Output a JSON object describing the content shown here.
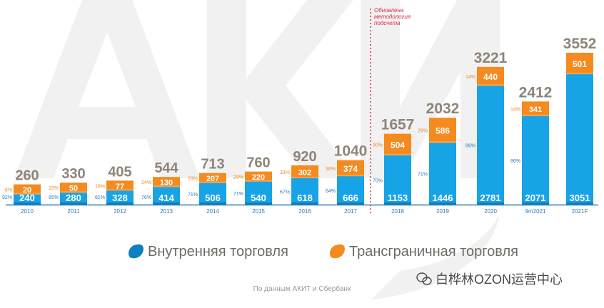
{
  "colors": {
    "domestic": "#17a3e6",
    "domestic_dark": "#0e7fc0",
    "crossborder": "#f58a1f",
    "crossborder_light": "#f7a34b",
    "total_label": "#8f8479",
    "pct_domestic": "#2b7bbf",
    "pct_cross": "#f08a2a",
    "axis": "#2b7bbf",
    "methodology_line": "#d8304a",
    "legend_text": "#6f6a64",
    "source_text": "#9a9a9a",
    "watermark_text": "#4a4a4a",
    "watermark": "#f1f1f1"
  },
  "chart_data": {
    "type": "bar",
    "stacked": true,
    "categories": [
      "2010",
      "2011",
      "2012",
      "2013",
      "2014",
      "2015",
      "2016",
      "2017",
      "2018",
      "2019",
      "2020",
      "9m2021",
      "2021F"
    ],
    "series": [
      {
        "name": "Внутренняя торговля",
        "values": [
          240,
          280,
          328,
          414,
          506,
          540,
          618,
          666,
          1153,
          1446,
          2781,
          2071,
          3051
        ]
      },
      {
        "name": "Трансграничная торговля",
        "values": [
          20,
          50,
          77,
          130,
          207,
          220,
          302,
          374,
          504,
          586,
          440,
          341,
          501
        ]
      }
    ],
    "totals": [
      260,
      330,
      405,
      544,
      713,
      760,
      920,
      1040,
      1657,
      2032,
      3221,
      2412,
      3552
    ],
    "domestic_share_labels": [
      "92%",
      "85%",
      "81%",
      "76%",
      "71%",
      "71%",
      "67%",
      "64%",
      "70%",
      "71%",
      "86%",
      "86%",
      ""
    ],
    "crossborder_share_labels": [
      "8%",
      "15%",
      "19%",
      "24%",
      "29%",
      "29%",
      "33%",
      "36%",
      "30%",
      "29%",
      "14%",
      "14%",
      ""
    ],
    "annotation": {
      "text_lines": [
        "Обновлена",
        "методология",
        "подсчета"
      ],
      "after_category": "2017"
    },
    "legend": {
      "position": "bottom-center",
      "items": [
        "Внутренняя торговля",
        "Трансграничная торговля"
      ]
    },
    "source": "По данным АКИТ и Сбербанк",
    "grid": false,
    "ylim": [
      0,
      3900
    ]
  },
  "watermark": {
    "text": "白桦林OZON运营中心",
    "icon": "wechat-icon"
  }
}
